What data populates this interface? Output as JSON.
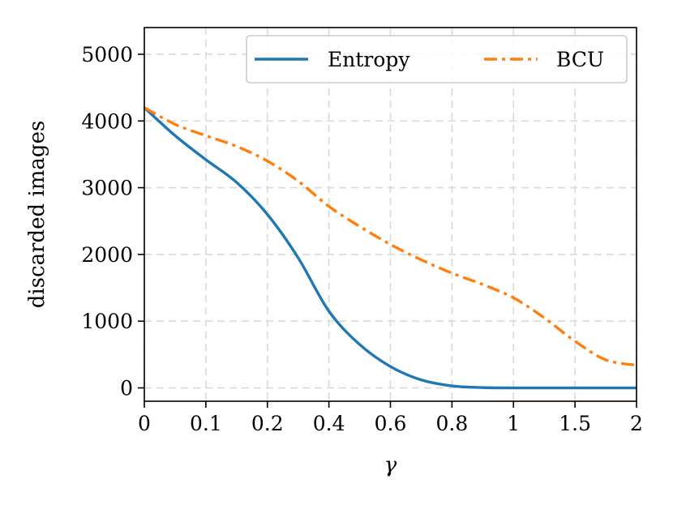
{
  "chart_data": {
    "type": "line",
    "xlabel": "γ",
    "ylabel": "discarded images",
    "x_ticks": [
      "0",
      "0.1",
      "0.2",
      "0.4",
      "0.6",
      "0.8",
      "1",
      "1.5",
      "2"
    ],
    "y_ticks": [
      0,
      1000,
      2000,
      3000,
      4000,
      5000
    ],
    "y_tick_labels": [
      "0",
      "1000",
      "2000",
      "3000",
      "4000",
      "5000"
    ],
    "ylim": [
      -200,
      5400
    ],
    "grid": true,
    "legend_position": "top-right",
    "series": [
      {
        "name": "Entropy",
        "color": "#1f77b4",
        "style": "solid",
        "x": [
          0,
          0.05,
          0.1,
          0.15,
          0.2,
          0.3,
          0.4,
          0.5,
          0.6,
          0.7,
          0.8,
          0.9,
          1,
          1.25,
          1.5,
          1.75,
          2
        ],
        "values": [
          4200,
          3780,
          3420,
          3080,
          2600,
          1950,
          1150,
          650,
          320,
          120,
          30,
          5,
          0,
          0,
          0,
          0,
          0
        ]
      },
      {
        "name": "BCU",
        "color": "#ff7f0e",
        "style": "dashdot",
        "x": [
          0,
          0.05,
          0.1,
          0.15,
          0.2,
          0.3,
          0.4,
          0.5,
          0.6,
          0.7,
          0.8,
          0.9,
          1,
          1.25,
          1.5,
          1.75,
          2
        ],
        "values": [
          4200,
          3950,
          3780,
          3620,
          3400,
          3100,
          2720,
          2420,
          2150,
          1920,
          1720,
          1550,
          1350,
          1050,
          700,
          420,
          340
        ]
      }
    ]
  }
}
